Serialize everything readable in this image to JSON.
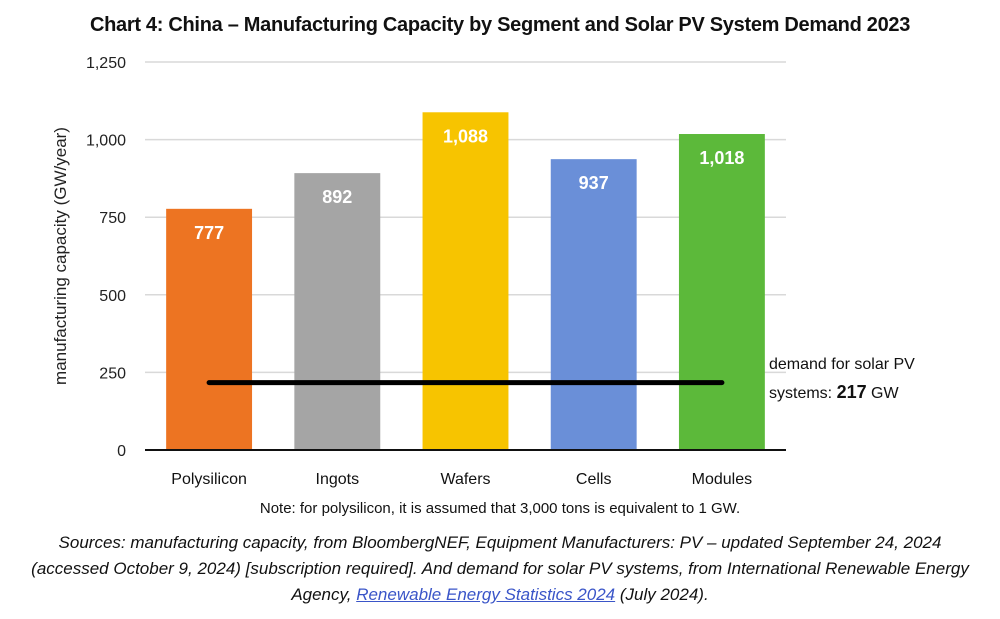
{
  "chart_data": {
    "type": "bar",
    "title": "Chart 4: China – Manufacturing Capacity by Segment and Solar PV System Demand 2023",
    "xlabel": "",
    "ylabel": "manufacturing capacity (GW/year)",
    "ylim": [
      0,
      1250
    ],
    "yticks": [
      0,
      250,
      500,
      750,
      1000,
      1250
    ],
    "ytick_labels": [
      "0",
      "250",
      "500",
      "750",
      "1,000",
      "1,250"
    ],
    "grid": true,
    "categories": [
      "Polysilicon",
      "Ingots",
      "Wafers",
      "Cells",
      "Modules"
    ],
    "values": [
      777,
      892,
      1088,
      937,
      1018
    ],
    "value_labels": [
      "777",
      "892",
      "1,088",
      "937",
      "1,018"
    ],
    "colors": [
      "#ed7422",
      "#a5a5a5",
      "#f7c400",
      "#6a8fd8",
      "#5cb93a"
    ],
    "reference_line": {
      "value": 217,
      "color": "#000000",
      "label_line1": "demand for solar PV",
      "label_line2_prefix": "systems: ",
      "label_value": "217",
      "label_unit": " GW"
    }
  },
  "note": "Note: for polysilicon, it is assumed that 3,000 tons is equivalent to 1 GW.",
  "sources": {
    "text_before": "Sources: manufacturing capacity, from BloombergNEF, Equipment Manufacturers: PV – updated September 24, 2024 (accessed October 9, 2024) [subscription required]. And demand for solar PV systems, from International Renewable Energy Agency, ",
    "link_text": "Renewable Energy Statistics 2024",
    "text_after": " (July 2024)."
  }
}
